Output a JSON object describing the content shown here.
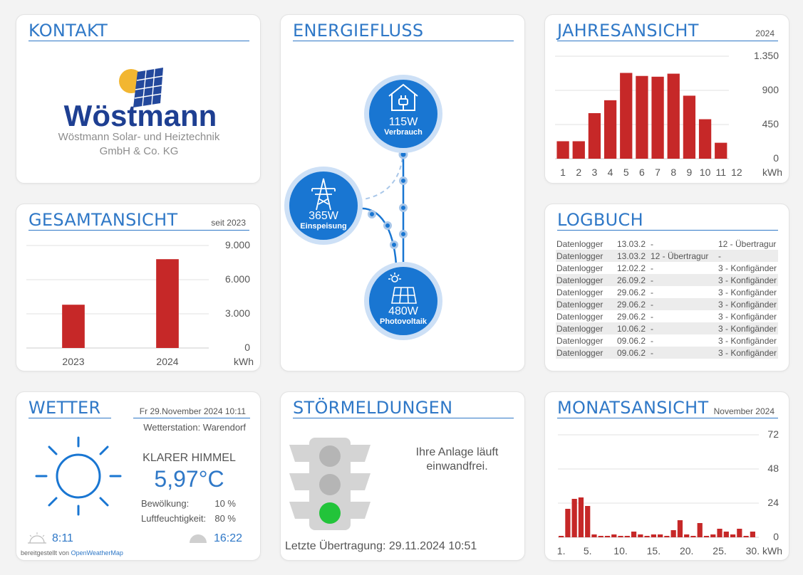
{
  "kontakt": {
    "title": "KONTAKT",
    "brand": "Wöstmann",
    "company_line1": "Wöstmann Solar- und Heiztechnik",
    "company_line2": "GmbH & Co. KG"
  },
  "energiefluss": {
    "title": "ENERGIEFLUSS",
    "verbrauch": {
      "value": "115W",
      "label": "Verbrauch"
    },
    "einspeisung": {
      "value": "365W",
      "label": "Einspeisung"
    },
    "photovoltaik": {
      "value": "480W",
      "label": "Photovoltaik"
    }
  },
  "jahresansicht": {
    "title": "JAHRESANSICHT",
    "year": "2024",
    "unit": "kWh",
    "ticks": [
      "1.350",
      "900",
      "450",
      "0"
    ]
  },
  "gesamtansicht": {
    "title": "GESAMTANSICHT",
    "since": "seit 2023",
    "unit": "kWh",
    "ticks": [
      "9.000",
      "6.000",
      "3.000",
      "0"
    ]
  },
  "logbuch": {
    "title": "LOGBUCH",
    "rows": [
      {
        "source": "Datenlogger",
        "date": "13.03.2",
        "a": "-",
        "b": "12 - Übertragur"
      },
      {
        "source": "Datenlogger",
        "date": "13.03.2",
        "a": "12 - Übertragur",
        "b": "-"
      },
      {
        "source": "Datenlogger",
        "date": "12.02.2",
        "a": "-",
        "b": "3 - Konfigänder"
      },
      {
        "source": "Datenlogger",
        "date": "26.09.2",
        "a": "-",
        "b": "3 - Konfigänder"
      },
      {
        "source": "Datenlogger",
        "date": "29.06.2",
        "a": "-",
        "b": "3 - Konfigänder"
      },
      {
        "source": "Datenlogger",
        "date": "29.06.2",
        "a": "-",
        "b": "3 - Konfigänder"
      },
      {
        "source": "Datenlogger",
        "date": "29.06.2",
        "a": "-",
        "b": "3 - Konfigänder"
      },
      {
        "source": "Datenlogger",
        "date": "10.06.2",
        "a": "-",
        "b": "3 - Konfigänder"
      },
      {
        "source": "Datenlogger",
        "date": "09.06.2",
        "a": "-",
        "b": "3 - Konfigänder"
      },
      {
        "source": "Datenlogger",
        "date": "09.06.2",
        "a": "-",
        "b": "3 - Konfigänder"
      }
    ]
  },
  "wetter": {
    "title": "WETTER",
    "datetime": "Fr 29.November 2024 10:11",
    "station": "Wetterstation: Warendorf",
    "condition": "KLARER HIMMEL",
    "temperature": "5,97°C",
    "cloud_label": "Bewölkung:",
    "cloud_value": "10 %",
    "humidity_label": "Luftfeuchtigkeit:",
    "humidity_value": "80 %",
    "sunrise": "8:11",
    "sunset": "16:22",
    "provided_by": "bereitgestellt von",
    "provider": "OpenWeatherMap"
  },
  "stoermeldungen": {
    "title": "STÖRMELDUNGEN",
    "message_line1": "Ihre Anlage läuft",
    "message_line2": "einwandfrei.",
    "last_transfer": "Letzte Übertragung: 29.11.2024 10:51"
  },
  "monatsansicht": {
    "title": "MONATSANSICHT",
    "period": "November 2024",
    "unit": "kWh",
    "ticks": [
      "72",
      "48",
      "24",
      "0"
    ]
  },
  "colors": {
    "accent": "#2f78c7",
    "bar": "#c62828",
    "node": "#1976d2",
    "green": "#22c43a"
  },
  "chart_data": [
    {
      "type": "bar",
      "categories": [
        "1",
        "2",
        "3",
        "4",
        "5",
        "6",
        "7",
        "8",
        "9",
        "10",
        "11",
        "12"
      ],
      "values": [
        230,
        230,
        600,
        770,
        1130,
        1090,
        1080,
        1120,
        830,
        520,
        210,
        0
      ],
      "ylim": [
        0,
        1350
      ],
      "yticks": [
        0,
        450,
        900,
        1350
      ],
      "ylabel": "kWh",
      "title": "JAHRESANSICHT"
    },
    {
      "type": "bar",
      "categories": [
        "2023",
        "2024"
      ],
      "values": [
        3800,
        7800
      ],
      "ylim": [
        0,
        9000
      ],
      "yticks": [
        0,
        3000,
        6000,
        9000
      ],
      "ylabel": "kWh",
      "title": "GESAMTANSICHT"
    },
    {
      "type": "bar",
      "categories": [
        "1",
        "2",
        "3",
        "4",
        "5",
        "6",
        "7",
        "8",
        "9",
        "10",
        "11",
        "12",
        "13",
        "14",
        "15",
        "16",
        "17",
        "18",
        "19",
        "20",
        "21",
        "22",
        "23",
        "24",
        "25",
        "26",
        "27",
        "28",
        "29",
        "30"
      ],
      "xticks": [
        "1.",
        "5.",
        "10.",
        "15.",
        "20.",
        "25.",
        "30."
      ],
      "values": [
        1,
        20,
        27,
        28,
        22,
        2,
        1,
        1,
        2,
        1,
        1,
        4,
        2,
        1,
        2,
        2,
        1,
        5,
        12,
        2,
        1,
        10,
        1,
        2,
        6,
        4,
        2,
        6,
        1,
        4
      ],
      "ylim": [
        0,
        72
      ],
      "yticks": [
        0,
        24,
        48,
        72
      ],
      "ylabel": "kWh",
      "title": "MONATSANSICHT"
    }
  ]
}
